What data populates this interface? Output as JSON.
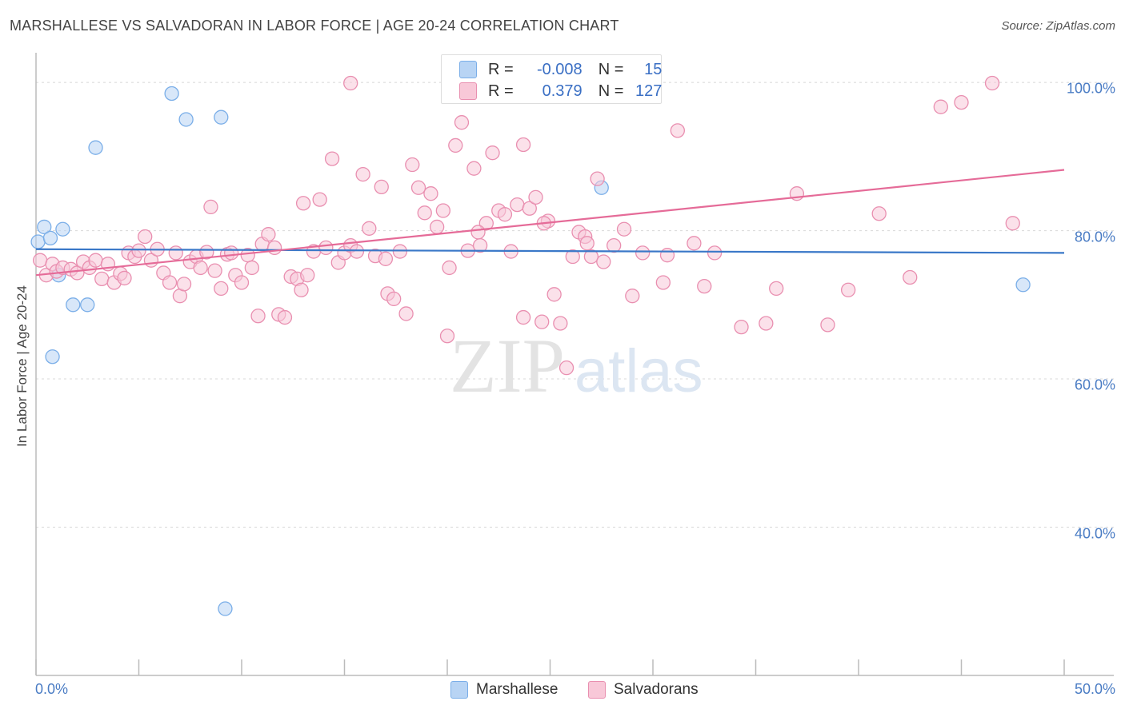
{
  "chart_data": {
    "type": "scatter",
    "title": "MARSHALLESE VS SALVADORAN IN LABOR FORCE | AGE 20-24 CORRELATION CHART",
    "source": "Source: ZipAtlas.com",
    "ylabel": "In Labor Force | Age 20-24",
    "xlabel": "",
    "xlim": [
      0,
      50
    ],
    "ylim": [
      20,
      104
    ],
    "x_tick_labels": [
      "0.0%",
      "50.0%"
    ],
    "y_tick_labels": [
      "100.0%",
      "80.0%",
      "60.0%",
      "40.0%"
    ],
    "y_tick_values": [
      100,
      80,
      60,
      40
    ],
    "watermark": {
      "zip": "ZIP",
      "atlas": "atlas"
    },
    "legend": [
      {
        "name": "Marshallese",
        "r_label": "R =",
        "r": "-0.008",
        "n_label": "N =",
        "n": "15",
        "color": "#7aaee8",
        "fill": "#b8d4f4"
      },
      {
        "name": "Salvadorans",
        "r_label": "R =",
        "r": "0.379",
        "n_label": "N =",
        "n": "127",
        "color": "#e98fb0",
        "fill": "#f8c8d8"
      }
    ],
    "series": [
      {
        "name": "Marshallese",
        "color": "#7aaee8",
        "fill": "#b8d4f4",
        "trend": {
          "x0": 0,
          "y0": 77.5,
          "x1": 50,
          "y1": 77.0,
          "color": "#3a78c8"
        },
        "points": [
          [
            0.1,
            78.5
          ],
          [
            0.4,
            80.5
          ],
          [
            0.7,
            79.0
          ],
          [
            1.3,
            80.2
          ],
          [
            1.1,
            74.0
          ],
          [
            0.8,
            63.0
          ],
          [
            1.8,
            70.0
          ],
          [
            2.5,
            70.0
          ],
          [
            2.9,
            91.2
          ],
          [
            6.6,
            98.5
          ],
          [
            7.3,
            95.0
          ],
          [
            9.0,
            95.3
          ],
          [
            27.5,
            85.8
          ],
          [
            48.0,
            72.7
          ],
          [
            9.2,
            29.0
          ]
        ]
      },
      {
        "name": "Salvadorans",
        "color": "#e98fb0",
        "fill": "#f8c8d8",
        "trend": {
          "x0": 0,
          "y0": 74.0,
          "x1": 50,
          "y1": 88.2,
          "color": "#e56b98"
        },
        "points": [
          [
            0.2,
            76.0
          ],
          [
            0.5,
            74.0
          ],
          [
            0.8,
            75.5
          ],
          [
            1.0,
            74.5
          ],
          [
            1.3,
            75.0
          ],
          [
            1.7,
            74.8
          ],
          [
            2.0,
            74.3
          ],
          [
            2.3,
            75.8
          ],
          [
            2.6,
            75.0
          ],
          [
            2.9,
            76.0
          ],
          [
            3.2,
            73.5
          ],
          [
            3.5,
            75.5
          ],
          [
            3.8,
            73.0
          ],
          [
            4.1,
            74.2
          ],
          [
            4.3,
            73.6
          ],
          [
            4.5,
            77.0
          ],
          [
            4.8,
            76.5
          ],
          [
            5.0,
            77.3
          ],
          [
            5.3,
            79.2
          ],
          [
            5.6,
            76.0
          ],
          [
            5.9,
            77.5
          ],
          [
            6.2,
            74.3
          ],
          [
            6.5,
            73.0
          ],
          [
            6.8,
            77.0
          ],
          [
            7.0,
            71.2
          ],
          [
            7.2,
            72.8
          ],
          [
            7.5,
            75.8
          ],
          [
            7.8,
            76.5
          ],
          [
            8.0,
            75.0
          ],
          [
            8.3,
            77.1
          ],
          [
            8.5,
            83.2
          ],
          [
            8.7,
            74.6
          ],
          [
            9.0,
            72.2
          ],
          [
            9.3,
            76.8
          ],
          [
            9.5,
            77.0
          ],
          [
            9.7,
            74.0
          ],
          [
            10.0,
            73.0
          ],
          [
            10.3,
            76.7
          ],
          [
            10.5,
            75.0
          ],
          [
            10.8,
            68.5
          ],
          [
            11.0,
            78.2
          ],
          [
            11.3,
            79.5
          ],
          [
            11.6,
            77.7
          ],
          [
            11.8,
            68.7
          ],
          [
            12.1,
            68.3
          ],
          [
            12.4,
            73.8
          ],
          [
            12.7,
            73.5
          ],
          [
            12.9,
            72.0
          ],
          [
            13.2,
            74.0
          ],
          [
            13.5,
            77.2
          ],
          [
            13.8,
            84.2
          ],
          [
            14.1,
            77.7
          ],
          [
            14.4,
            89.7
          ],
          [
            14.7,
            75.7
          ],
          [
            15.0,
            77.0
          ],
          [
            15.3,
            78.0
          ],
          [
            15.6,
            77.2
          ],
          [
            15.9,
            87.6
          ],
          [
            16.2,
            80.3
          ],
          [
            16.5,
            76.6
          ],
          [
            16.8,
            85.9
          ],
          [
            17.1,
            71.5
          ],
          [
            17.4,
            70.8
          ],
          [
            17.7,
            77.2
          ],
          [
            18.0,
            68.8
          ],
          [
            18.3,
            88.9
          ],
          [
            18.6,
            85.8
          ],
          [
            18.9,
            82.4
          ],
          [
            19.2,
            85.0
          ],
          [
            19.5,
            80.5
          ],
          [
            19.8,
            82.7
          ],
          [
            20.1,
            75.0
          ],
          [
            20.4,
            91.5
          ],
          [
            20.7,
            94.6
          ],
          [
            21.0,
            77.3
          ],
          [
            21.3,
            88.4
          ],
          [
            21.6,
            78.0
          ],
          [
            21.9,
            81.0
          ],
          [
            22.2,
            90.5
          ],
          [
            22.5,
            82.7
          ],
          [
            22.8,
            82.2
          ],
          [
            23.1,
            77.2
          ],
          [
            23.4,
            83.5
          ],
          [
            23.7,
            91.6
          ],
          [
            24.0,
            83.0
          ],
          [
            24.3,
            84.5
          ],
          [
            24.6,
            67.7
          ],
          [
            24.9,
            81.3
          ],
          [
            25.2,
            71.4
          ],
          [
            25.5,
            67.5
          ],
          [
            25.8,
            61.5
          ],
          [
            26.1,
            76.5
          ],
          [
            26.4,
            79.8
          ],
          [
            26.7,
            79.2
          ],
          [
            27.0,
            76.5
          ],
          [
            27.3,
            87.0
          ],
          [
            27.6,
            75.8
          ],
          [
            28.1,
            78.0
          ],
          [
            29.0,
            71.2
          ],
          [
            29.5,
            77.0
          ],
          [
            30.5,
            73.0
          ],
          [
            31.2,
            93.5
          ],
          [
            32.5,
            72.5
          ],
          [
            33.0,
            77.0
          ],
          [
            34.3,
            67.0
          ],
          [
            35.5,
            67.5
          ],
          [
            36.0,
            72.2
          ],
          [
            37.0,
            85.0
          ],
          [
            38.5,
            67.3
          ],
          [
            39.5,
            72.0
          ],
          [
            41.0,
            82.3
          ],
          [
            42.5,
            73.7
          ],
          [
            44.0,
            96.7
          ],
          [
            45.0,
            97.3
          ],
          [
            46.5,
            99.9
          ],
          [
            47.5,
            81.0
          ],
          [
            15.3,
            99.9
          ],
          [
            20.0,
            65.8
          ],
          [
            23.7,
            68.3
          ],
          [
            26.8,
            78.3
          ],
          [
            30.7,
            76.7
          ],
          [
            13.0,
            83.7
          ],
          [
            17.0,
            76.2
          ],
          [
            21.5,
            79.8
          ],
          [
            24.7,
            81.0
          ],
          [
            28.6,
            80.2
          ],
          [
            32.0,
            78.3
          ]
        ]
      }
    ]
  }
}
